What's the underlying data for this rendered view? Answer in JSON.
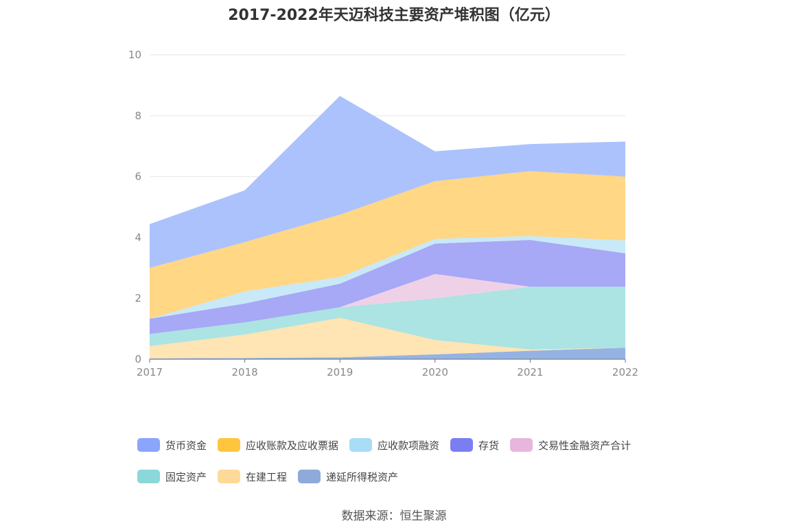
{
  "chart_data": {
    "type": "area",
    "stacked": true,
    "title": "2017-2022年天迈科技主要资产堆积图（亿元）",
    "x": [
      "2017",
      "2018",
      "2019",
      "2020",
      "2021",
      "2022"
    ],
    "ylim": [
      0,
      10
    ],
    "yticks": [
      "0",
      "2",
      "4",
      "6",
      "8",
      "10"
    ],
    "grid": true,
    "legend_position": "bottom",
    "series": [
      {
        "name": "递延所得税资产",
        "color": "#8fafe0",
        "values": [
          0.03,
          0.04,
          0.06,
          0.16,
          0.28,
          0.38
        ]
      },
      {
        "name": "在建工程",
        "color": "#ffe3b0",
        "values": [
          0.4,
          0.77,
          1.3,
          0.47,
          0.04,
          0.0
        ]
      },
      {
        "name": "固定资产",
        "color": "#a8e1e2",
        "values": [
          0.4,
          0.4,
          0.35,
          1.37,
          2.06,
          2.0
        ]
      },
      {
        "name": "交易性金融资产合计",
        "color": "#eecfe6",
        "values": [
          0.0,
          0.0,
          0.0,
          0.8,
          0.0,
          0.0
        ]
      },
      {
        "name": "存货",
        "color": "#a2a3f6",
        "values": [
          0.5,
          0.62,
          0.77,
          1.0,
          1.54,
          1.1
        ]
      },
      {
        "name": "应收款项融资",
        "color": "#c5e8f7",
        "values": [
          0.0,
          0.4,
          0.22,
          0.15,
          0.13,
          0.42
        ]
      },
      {
        "name": "应收账款及应收票据",
        "color": "#ffd57e",
        "values": [
          1.67,
          1.62,
          2.05,
          1.9,
          2.13,
          2.1
        ]
      },
      {
        "name": "货币资金",
        "color": "#a8bffd",
        "values": [
          1.44,
          1.7,
          3.9,
          0.98,
          0.89,
          1.15
        ]
      }
    ]
  },
  "legend": [
    {
      "label": "货币资金",
      "color": "#8aa5fb"
    },
    {
      "label": "应收账款及应收票据",
      "color": "#ffc53d"
    },
    {
      "label": "应收款项融资",
      "color": "#a9dcf7"
    },
    {
      "label": "存货",
      "color": "#7b7ef2"
    },
    {
      "label": "交易性金融资产合计",
      "color": "#e8b5dc"
    },
    {
      "label": "固定资产",
      "color": "#8ad8d9"
    },
    {
      "label": "在建工程",
      "color": "#ffd998"
    },
    {
      "label": "递延所得税资产",
      "color": "#8fa9d9"
    }
  ],
  "source": "数据来源：恒生聚源"
}
